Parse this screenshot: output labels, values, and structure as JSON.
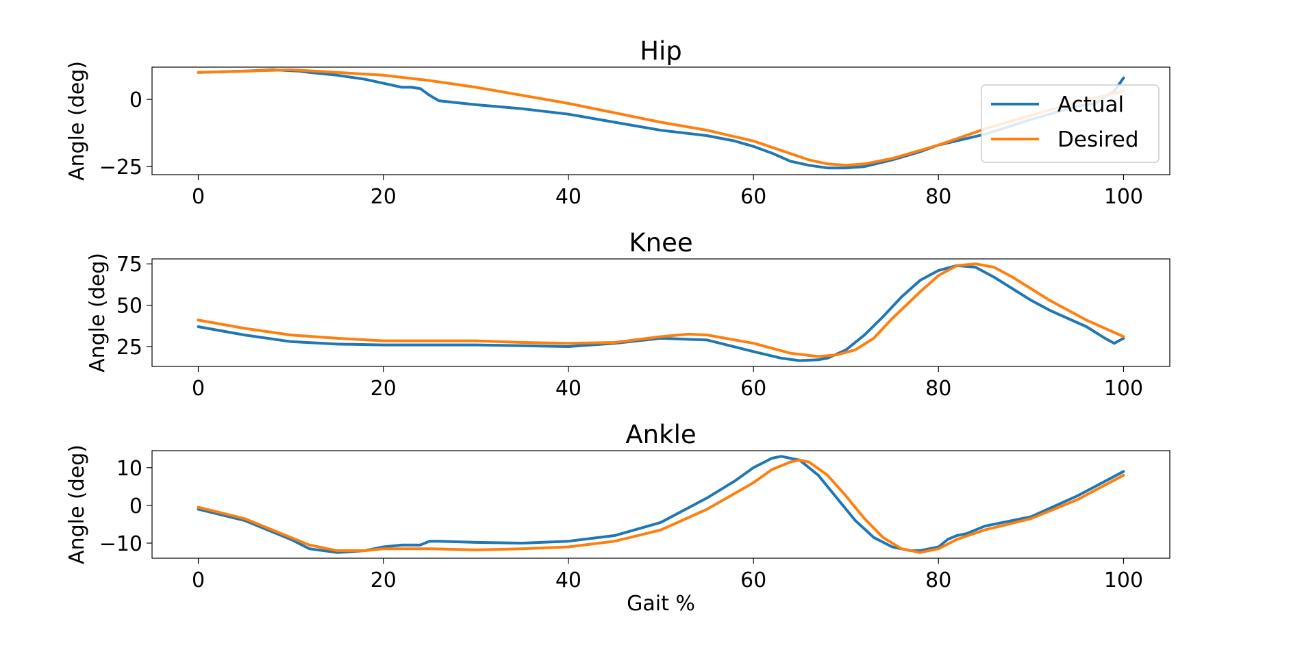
{
  "chart_data": [
    {
      "type": "line",
      "title": "Hip",
      "xlabel": "",
      "ylabel": "Angle (deg)",
      "xlim": [
        -5,
        105
      ],
      "ylim": [
        -28,
        12
      ],
      "xticks": [
        0,
        20,
        40,
        60,
        80,
        100
      ],
      "yticks": [
        -25,
        0
      ],
      "ytick_labels": [
        "−25",
        "0"
      ],
      "legend": {
        "location": "right",
        "entries": [
          "Actual",
          "Desired"
        ]
      },
      "series": [
        {
          "name": "Actual",
          "color": "#1f77b4",
          "x": [
            0,
            5,
            8,
            11,
            12,
            15,
            18,
            20,
            22,
            23,
            24,
            25,
            26,
            30,
            35,
            40,
            45,
            50,
            55,
            58,
            60,
            62,
            64,
            66,
            68,
            70,
            72,
            75,
            78,
            80,
            85,
            90,
            95,
            97,
            98,
            99,
            100
          ],
          "y": [
            10,
            10.5,
            11,
            10.5,
            10,
            9,
            7.5,
            6,
            4.5,
            4.5,
            4,
            1.5,
            -0.5,
            -2,
            -3.5,
            -5.5,
            -8.5,
            -11.5,
            -13.5,
            -15.5,
            -17.5,
            -20,
            -23,
            -24.5,
            -25.5,
            -25.5,
            -25,
            -22.5,
            -19.5,
            -17,
            -13,
            -7.5,
            -2.5,
            -1.5,
            1,
            3,
            8
          ]
        },
        {
          "name": "Desired",
          "color": "#ff7f0e",
          "x": [
            0,
            5,
            10,
            15,
            20,
            25,
            30,
            35,
            40,
            45,
            50,
            55,
            60,
            63,
            66,
            68,
            70,
            72,
            75,
            80,
            85,
            90,
            95,
            100
          ],
          "y": [
            10,
            10.5,
            11,
            10,
            9,
            7,
            4.5,
            1.5,
            -1.5,
            -5,
            -8.5,
            -11.5,
            -15.5,
            -19,
            -22.5,
            -24,
            -24.5,
            -24,
            -22,
            -17,
            -11,
            -6,
            -1,
            3
          ]
        }
      ]
    },
    {
      "type": "line",
      "title": "Knee",
      "xlabel": "",
      "ylabel": "Angle (deg)",
      "xlim": [
        -5,
        105
      ],
      "ylim": [
        13,
        78
      ],
      "xticks": [
        0,
        20,
        40,
        60,
        80,
        100
      ],
      "yticks": [
        25,
        50,
        75
      ],
      "ytick_labels": [
        "25",
        "50",
        "75"
      ],
      "series": [
        {
          "name": "Actual",
          "color": "#1f77b4",
          "x": [
            0,
            5,
            10,
            15,
            20,
            25,
            30,
            35,
            40,
            45,
            50,
            55,
            60,
            63,
            65,
            67,
            68,
            70,
            72,
            74,
            76,
            78,
            80,
            82,
            84,
            86,
            88,
            90,
            92,
            94,
            96,
            98,
            99,
            100
          ],
          "y": [
            37,
            32,
            28,
            26.5,
            26,
            26,
            26,
            25.5,
            25,
            27,
            30,
            29,
            22,
            18,
            16.5,
            17,
            18,
            23,
            32,
            43,
            55,
            65,
            71,
            74,
            73,
            67,
            60,
            53,
            47,
            42,
            37,
            30,
            27,
            30
          ]
        },
        {
          "name": "Desired",
          "color": "#ff7f0e",
          "x": [
            0,
            5,
            10,
            15,
            20,
            25,
            30,
            35,
            40,
            45,
            50,
            53,
            55,
            60,
            64,
            67,
            69,
            71,
            73,
            75,
            78,
            80,
            82,
            84,
            86,
            88,
            90,
            92,
            94,
            96,
            98,
            100
          ],
          "y": [
            41,
            36,
            32,
            30,
            28.5,
            28.5,
            28.5,
            27.5,
            27,
            27.5,
            31,
            32.5,
            32,
            27,
            21,
            19,
            20,
            23,
            30,
            42,
            58,
            68,
            74,
            75,
            73,
            67,
            60,
            53,
            47,
            41,
            36,
            31
          ]
        }
      ]
    },
    {
      "type": "line",
      "title": "Ankle",
      "xlabel": "Gait %",
      "ylabel": "Angle (deg)",
      "xlim": [
        -5,
        105
      ],
      "ylim": [
        -14,
        14.5
      ],
      "xticks": [
        0,
        20,
        40,
        60,
        80,
        100
      ],
      "yticks": [
        -10,
        0,
        10
      ],
      "ytick_labels": [
        "−10",
        "0",
        "10"
      ],
      "series": [
        {
          "name": "Actual",
          "color": "#1f77b4",
          "x": [
            0,
            5,
            10,
            12,
            15,
            18,
            20,
            22,
            24,
            25,
            26,
            30,
            35,
            40,
            45,
            50,
            55,
            58,
            60,
            62,
            63,
            65,
            67,
            69,
            71,
            73,
            75,
            77,
            78,
            79,
            80,
            81,
            82,
            83,
            85,
            88,
            90,
            95,
            100
          ],
          "y": [
            -1,
            -4,
            -9,
            -11.5,
            -12.5,
            -12,
            -11,
            -10.5,
            -10.5,
            -9.5,
            -9.5,
            -9.8,
            -10,
            -9.5,
            -8,
            -4.5,
            2,
            6.5,
            10,
            12.5,
            13,
            12,
            8,
            2,
            -4,
            -8.5,
            -11,
            -12,
            -12,
            -11.5,
            -11,
            -9,
            -8,
            -7.5,
            -5.5,
            -4,
            -3,
            2.5,
            9
          ]
        },
        {
          "name": "Desired",
          "color": "#ff7f0e",
          "x": [
            0,
            5,
            10,
            12,
            15,
            18,
            20,
            25,
            30,
            35,
            40,
            45,
            50,
            55,
            60,
            62,
            64,
            65,
            66,
            68,
            70,
            72,
            74,
            76,
            78,
            80,
            82,
            85,
            90,
            95,
            100
          ],
          "y": [
            -0.5,
            -3.5,
            -8.5,
            -10.5,
            -12,
            -12,
            -11.5,
            -11.5,
            -11.8,
            -11.5,
            -11,
            -9.5,
            -6.5,
            -1,
            6,
            9.5,
            11.5,
            12,
            11.5,
            8,
            2.5,
            -3.5,
            -8.5,
            -11.5,
            -12.5,
            -11.5,
            -9,
            -6.5,
            -3.5,
            1.5,
            8
          ]
        }
      ]
    }
  ]
}
